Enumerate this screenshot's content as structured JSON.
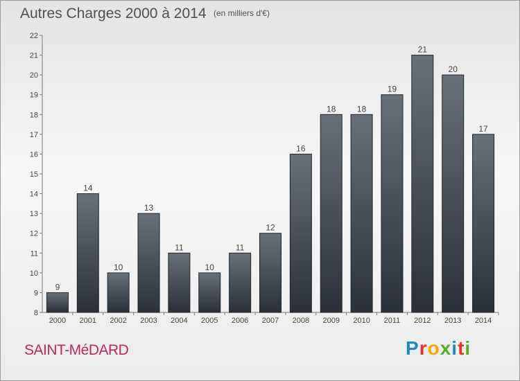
{
  "header": {
    "title": "Autres Charges 2000 à 2014",
    "unit": "(en milliers d'€)"
  },
  "footer": {
    "commune": "SAINT-MéDARD",
    "brand": "Proxiti",
    "brand_colors": [
      "#1e88c8",
      "#e5332a",
      "#f2a900",
      "#5aab32",
      "#1e88c8",
      "#e5332a",
      "#5aab32"
    ]
  },
  "colors": {
    "bar_top": "#6a7078",
    "bar_bottom": "#2b3038",
    "text": "#505050",
    "commune": "#c0285b"
  },
  "chart_data": {
    "type": "bar",
    "title": "Autres Charges 2000 à 2014",
    "subtitle": "(en milliers d'€)",
    "categories": [
      "2000",
      "2001",
      "2002",
      "2003",
      "2004",
      "2005",
      "2006",
      "2007",
      "2008",
      "2009",
      "2010",
      "2011",
      "2012",
      "2013",
      "2014"
    ],
    "values": [
      9,
      14,
      10,
      13,
      11,
      10,
      11,
      12,
      16,
      18,
      18,
      19,
      21,
      20,
      17
    ],
    "ylim": [
      8,
      22
    ],
    "yticks": [
      8,
      9,
      10,
      11,
      12,
      13,
      14,
      15,
      16,
      17,
      18,
      19,
      20,
      21,
      22
    ],
    "xlabel": "",
    "ylabel": "",
    "grid": false,
    "data_labels": true
  }
}
